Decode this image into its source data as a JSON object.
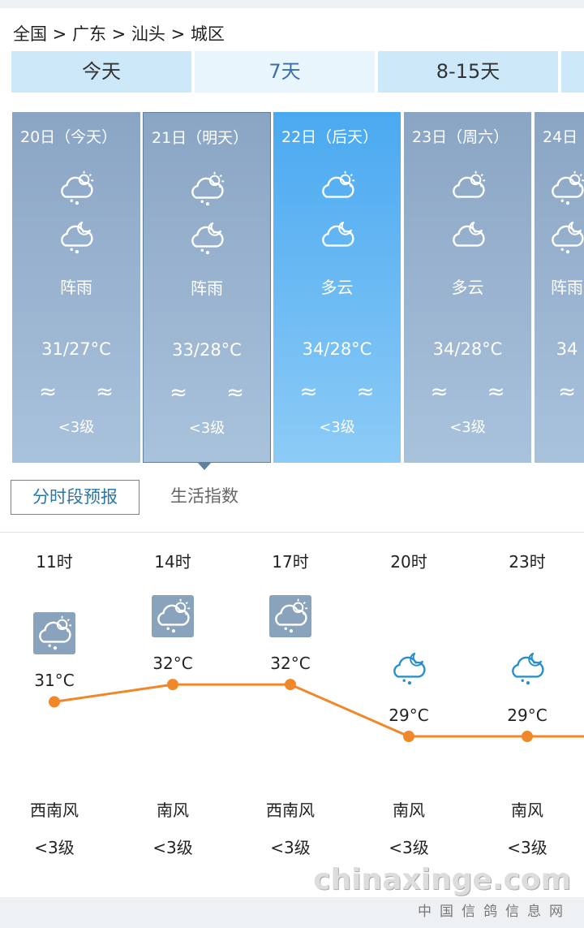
{
  "breadcrumb": "全国 > 广东 > 汕头 > 城区",
  "tabs": [
    {
      "label": "今天"
    },
    {
      "label": "7天",
      "active": true
    },
    {
      "label": "8-15天"
    },
    {
      "label": ""
    }
  ],
  "days": [
    {
      "date": "20日（今天）",
      "day_icon": "cloud-sun-rain-icon",
      "night_icon": "cloud-moon-rain-icon",
      "cond": "阵雨",
      "temp": "31/27°C",
      "wind": "≈ ≈",
      "level": "<3级"
    },
    {
      "date": "21日（明天）",
      "day_icon": "cloud-sun-rain-icon",
      "night_icon": "cloud-moon-rain-icon",
      "cond": "阵雨",
      "temp": "33/28°C",
      "wind": "≈ ≈",
      "level": "<3级",
      "selected": true
    },
    {
      "date": "22日（后天）",
      "day_icon": "cloud-sun-icon",
      "night_icon": "cloud-moon-icon",
      "cond": "多云",
      "temp": "34/28°C",
      "wind": "≈ ≈",
      "level": "<3级",
      "highlight": true
    },
    {
      "date": "23日（周六）",
      "day_icon": "cloud-sun-icon",
      "night_icon": "cloud-moon-icon",
      "cond": "多云",
      "temp": "34/28°C",
      "wind": "≈ ≈",
      "level": "<3级"
    },
    {
      "date": "24日",
      "day_icon": "cloud-sun-rain-icon",
      "night_icon": "cloud-moon-rain-icon",
      "cond": "阵雨",
      "temp": "34",
      "wind": "≈",
      "level": ""
    }
  ],
  "subtabs": {
    "hourly": "分时段预报",
    "life": "生活指数"
  },
  "chart_data": {
    "type": "line",
    "color": "#f0882a",
    "x": [
      "11时",
      "14时",
      "17时",
      "20时",
      "23时"
    ],
    "values": [
      31,
      32,
      32,
      29,
      29
    ],
    "labels": [
      "31°C",
      "32°C",
      "32°C",
      "29°C",
      "29°C"
    ],
    "icons": [
      "cloud-sun-rain-icon",
      "cloud-sun-rain-icon",
      "cloud-sun-rain-icon",
      "cloud-moon-rain-icon",
      "cloud-moon-rain-icon"
    ],
    "wind_dir": [
      "西南风",
      "南风",
      "西南风",
      "南风",
      "南风"
    ],
    "wind_level": [
      "<3级",
      "<3级",
      "<3级",
      "<3级",
      "<3级"
    ]
  },
  "watermark": {
    "text": "chinaxinge.com",
    "sub": "中国信鸽信息网"
  }
}
